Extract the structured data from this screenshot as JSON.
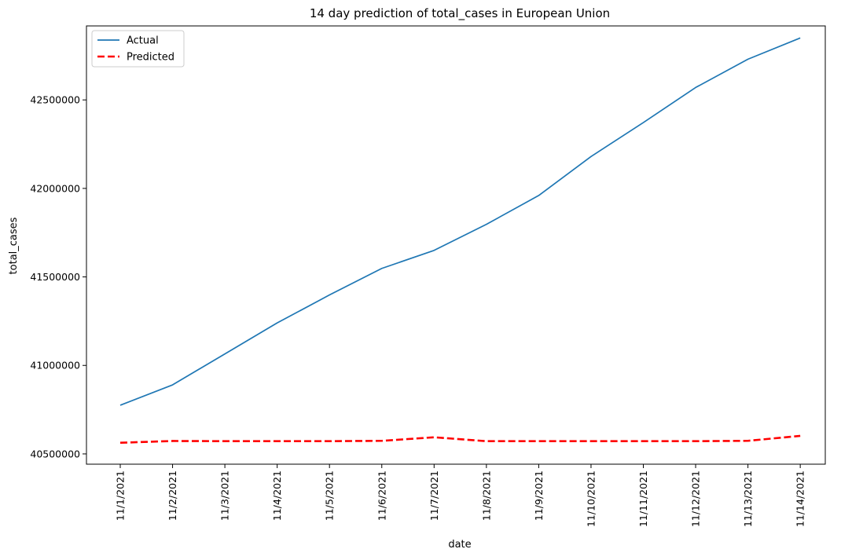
{
  "chart_data": {
    "type": "line",
    "title": "14 day prediction of total_cases in European Union",
    "xlabel": "date",
    "ylabel": "total_cases",
    "categories": [
      "11/1/2021",
      "11/2/2021",
      "11/3/2021",
      "11/4/2021",
      "11/5/2021",
      "11/6/2021",
      "11/7/2021",
      "11/8/2021",
      "11/9/2021",
      "11/10/2021",
      "11/11/2021",
      "11/12/2021",
      "11/13/2021",
      "11/14/2021"
    ],
    "y_ticks": [
      40500000,
      41000000,
      41500000,
      42000000,
      42500000
    ],
    "y_tick_labels": [
      "40500000",
      "41000000",
      "41500000",
      "42000000",
      "42500000"
    ],
    "ylim": [
      40442000,
      42918000
    ],
    "grid": false,
    "legend_position": "top-left",
    "series": [
      {
        "name": "Actual",
        "color": "#1f77b4",
        "style": "solid",
        "values": [
          40775000,
          40890000,
          41065000,
          41240000,
          41398000,
          41548000,
          41650000,
          41797000,
          41960000,
          42180000,
          42372000,
          42570000,
          42730000,
          42850000
        ]
      },
      {
        "name": "Predicted",
        "color": "#ff0000",
        "style": "dashed",
        "values": [
          40563000,
          40573000,
          40572000,
          40572000,
          40572000,
          40574000,
          40594000,
          40572000,
          40572000,
          40572000,
          40572000,
          40572000,
          40574000,
          40602000
        ]
      }
    ]
  }
}
